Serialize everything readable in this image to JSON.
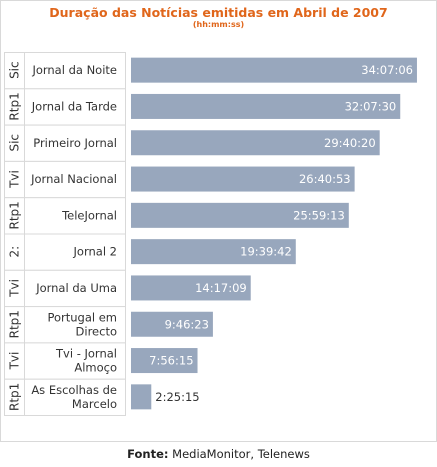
{
  "chart_data": {
    "type": "bar",
    "orientation": "horizontal",
    "title": "Duração das Notícias emitidas em Abril de 2007",
    "subtitle": "(hh:mm:ss)",
    "source_label": "Fonte:",
    "source": "MediaMonitor, Telenews",
    "bar_color": "#98a7bd",
    "grid": false,
    "legend": "none",
    "categories": [
      {
        "channel": "Sic",
        "program": [
          "Jornal da Noite"
        ],
        "value_label": "34:07:06",
        "value_seconds": 122826
      },
      {
        "channel": "Rtp1",
        "program": [
          "Jornal da Tarde"
        ],
        "value_label": "32:07:30",
        "value_seconds": 115650
      },
      {
        "channel": "Sic",
        "program": [
          "Primeiro Jornal"
        ],
        "value_label": "29:40:20",
        "value_seconds": 106820
      },
      {
        "channel": "Tvi",
        "program": [
          "Jornal Nacional"
        ],
        "value_label": "26:40:53",
        "value_seconds": 96053
      },
      {
        "channel": "Rtp1",
        "program": [
          "TeleJornal"
        ],
        "value_label": "25:59:13",
        "value_seconds": 93553
      },
      {
        "channel": "2:",
        "program": [
          "Jornal 2"
        ],
        "value_label": "19:39:42",
        "value_seconds": 70782
      },
      {
        "channel": "Tvi",
        "program": [
          "Jornal da Uma"
        ],
        "value_label": "14:17:09",
        "value_seconds": 51429
      },
      {
        "channel": "Rtp1",
        "program": [
          "Portugal em",
          "Directo"
        ],
        "value_label": "9:46:23",
        "value_seconds": 35183
      },
      {
        "channel": "Tvi",
        "program": [
          "Tvi - Jornal",
          "Almoço"
        ],
        "value_label": "7:56:15",
        "value_seconds": 28575
      },
      {
        "channel": "Rtp1",
        "program": [
          "As Escolhas de",
          "Marcelo"
        ],
        "value_label": "2:25:15",
        "value_seconds": 8715
      }
    ],
    "xlim_seconds": [
      0,
      128000
    ]
  }
}
